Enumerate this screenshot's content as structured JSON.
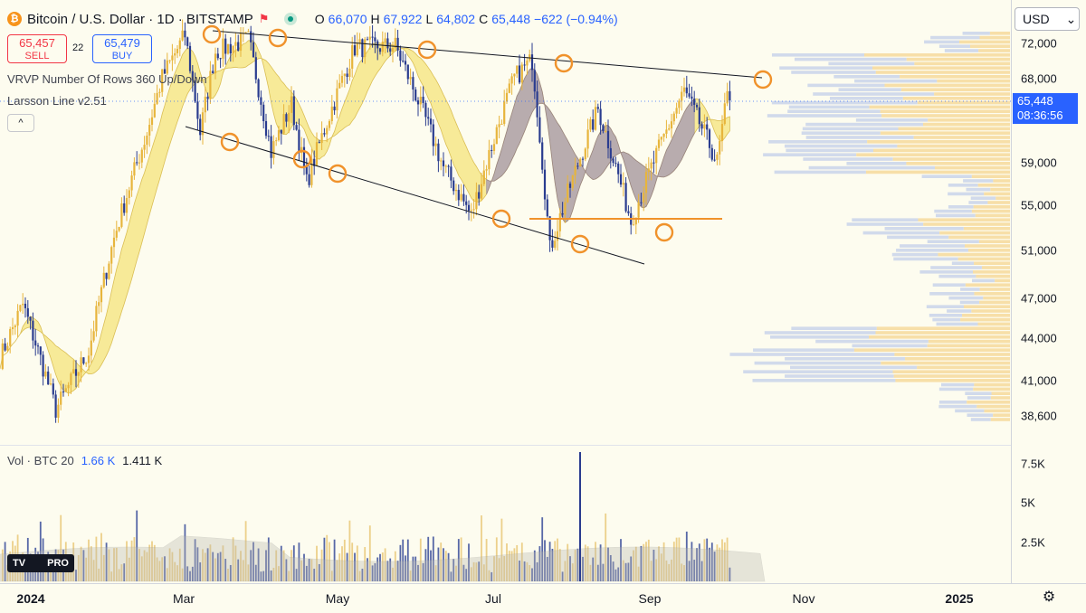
{
  "header": {
    "symbol_title": "Bitcoin / U.S. Dollar · 1D · BITSTAMP",
    "btc_glyph": "₿",
    "flag_glyph": "⚑",
    "ohlc": {
      "o_label": "O",
      "o": "66,070",
      "h_label": "H",
      "h": "67,922",
      "l_label": "L",
      "l": "64,802",
      "c_label": "C",
      "c": "65,448",
      "change": "−622 (−0.94%)"
    }
  },
  "trade": {
    "sell_price": "65,457",
    "sell_label": "SELL",
    "spread": "22",
    "buy_price": "65,479",
    "buy_label": "BUY"
  },
  "indicators": {
    "vrvp": "VRVP Number Of Rows 360 Up/Down",
    "larsson": "Larsson Line v2.51",
    "collapse_glyph": "^"
  },
  "price_axis": {
    "currency": "USD",
    "currency_chevron": "⌄",
    "labels": [
      "72,000",
      "68,000",
      "59,000",
      "55,000",
      "51,000",
      "47,000",
      "44,000",
      "41,000",
      "38,600"
    ],
    "last_price": "65,448",
    "countdown": "08:36:56",
    "vol_labels": [
      "7.5K",
      "5K",
      "2.5K"
    ]
  },
  "volume": {
    "title": "Vol · BTC 20",
    "value_a": "1.66 K",
    "value_b": "1.411 K"
  },
  "time_axis": {
    "labels": [
      "2024",
      "Mar",
      "May",
      "Jul",
      "Sep",
      "Nov",
      "2025"
    ],
    "settings_glyph": "⚙"
  },
  "logo": {
    "text_a": "TV",
    "text_b": "PRO"
  },
  "colors": {
    "background": "#fdfcef",
    "up": "#e7b53c",
    "down": "#2a3c8f",
    "band_fill": "#f7e88a",
    "band_blue": "#6c63c9",
    "marker": "#f0922b",
    "accent": "#2962ff"
  },
  "chart_data": {
    "type": "candlestick",
    "title": "Bitcoin / U.S. Dollar · 1D · BITSTAMP",
    "price_ticks": [
      72000,
      68000,
      59000,
      55000,
      51000,
      47000,
      44000,
      41000,
      38600
    ],
    "volume_ticks": [
      "7.5K",
      "5K",
      "2.5K"
    ],
    "x_ticks": [
      "2024",
      "Mar",
      "May",
      "Jul",
      "Sep",
      "Nov",
      "2025"
    ],
    "last_close": 65448,
    "price_path": [
      [
        "2024-01-01",
        42500
      ],
      [
        "2024-01-10",
        46500
      ],
      [
        "2024-01-23",
        39000
      ],
      [
        "2024-02-05",
        43000
      ],
      [
        "2024-02-15",
        52000
      ],
      [
        "2024-02-28",
        62000
      ],
      [
        "2024-03-05",
        68000
      ],
      [
        "2024-03-14",
        73000
      ],
      [
        "2024-03-20",
        62000
      ],
      [
        "2024-03-26",
        71000
      ],
      [
        "2024-04-08",
        72500
      ],
      [
        "2024-04-17",
        60000
      ],
      [
        "2024-04-25",
        65000
      ],
      [
        "2024-05-01",
        57000
      ],
      [
        "2024-05-20",
        71500
      ],
      [
        "2024-06-05",
        71700
      ],
      [
        "2024-06-24",
        58500
      ],
      [
        "2024-07-05",
        54000
      ],
      [
        "2024-07-22",
        68000
      ],
      [
        "2024-07-29",
        70000
      ],
      [
        "2024-08-05",
        51000
      ],
      [
        "2024-08-24",
        64500
      ],
      [
        "2024-09-06",
        53500
      ],
      [
        "2024-09-27",
        66500
      ],
      [
        "2024-10-10",
        59000
      ],
      [
        "2024-10-15",
        67500
      ]
    ]
  }
}
